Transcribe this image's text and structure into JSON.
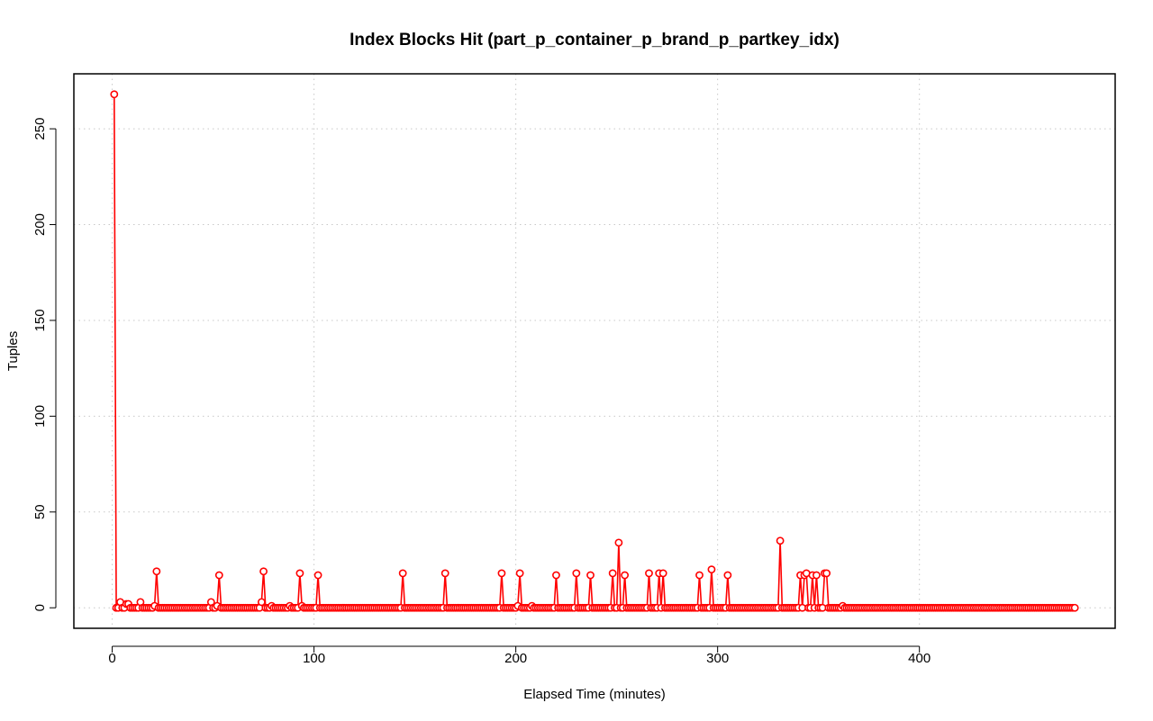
{
  "chart_data": {
    "type": "line",
    "title": "Index Blocks Hit (part_p_container_p_brand_p_partkey_idx)",
    "xlabel": "Elapsed Time (minutes)",
    "ylabel": "Tuples",
    "xlim": [
      -19,
      497
    ],
    "ylim": [
      -10.7,
      278.7
    ],
    "x_ticks": [
      0,
      100,
      200,
      300,
      400
    ],
    "y_ticks": [
      0,
      50,
      100,
      150,
      200,
      250
    ],
    "grid": true,
    "markers": "open-circle",
    "colors": {
      "series": "#ff0000",
      "grid": "#c8c8c8",
      "axis": "#000000"
    },
    "baseline": {
      "x_start": 1,
      "x_end": 477,
      "step": 1,
      "value": 0
    },
    "points": [
      [
        1,
        268
      ],
      [
        2,
        0
      ],
      [
        3,
        0
      ],
      [
        4,
        3
      ],
      [
        5,
        0
      ],
      [
        7,
        2
      ],
      [
        8,
        2
      ],
      [
        9,
        0
      ],
      [
        14,
        3
      ],
      [
        15,
        0
      ],
      [
        21,
        1
      ],
      [
        22,
        19
      ],
      [
        23,
        0
      ],
      [
        49,
        3
      ],
      [
        50,
        0
      ],
      [
        52,
        1
      ],
      [
        53,
        17
      ],
      [
        54,
        0
      ],
      [
        74,
        3
      ],
      [
        75,
        19
      ],
      [
        76,
        0
      ],
      [
        79,
        1
      ],
      [
        80,
        0
      ],
      [
        88,
        1
      ],
      [
        89,
        0
      ],
      [
        93,
        18
      ],
      [
        94,
        1
      ],
      [
        95,
        0
      ],
      [
        102,
        17
      ],
      [
        103,
        0
      ],
      [
        144,
        18
      ],
      [
        145,
        0
      ],
      [
        165,
        18
      ],
      [
        166,
        0
      ],
      [
        193,
        18
      ],
      [
        194,
        0
      ],
      [
        201,
        1
      ],
      [
        202,
        18
      ],
      [
        203,
        0
      ],
      [
        208,
        1
      ],
      [
        209,
        0
      ],
      [
        220,
        17
      ],
      [
        221,
        0
      ],
      [
        230,
        18
      ],
      [
        231,
        0
      ],
      [
        237,
        17
      ],
      [
        238,
        0
      ],
      [
        248,
        18
      ],
      [
        249,
        0
      ],
      [
        251,
        34
      ],
      [
        252,
        0
      ],
      [
        254,
        17
      ],
      [
        255,
        0
      ],
      [
        266,
        18
      ],
      [
        267,
        0
      ],
      [
        271,
        18
      ],
      [
        272,
        0
      ],
      [
        273,
        18
      ],
      [
        274,
        0
      ],
      [
        291,
        17
      ],
      [
        292,
        0
      ],
      [
        297,
        20
      ],
      [
        298,
        0
      ],
      [
        305,
        17
      ],
      [
        306,
        0
      ],
      [
        331,
        35
      ],
      [
        332,
        0
      ],
      [
        341,
        17
      ],
      [
        342,
        0
      ],
      [
        343,
        17
      ],
      [
        344,
        18
      ],
      [
        345,
        0
      ],
      [
        347,
        17
      ],
      [
        348,
        0
      ],
      [
        349,
        17
      ],
      [
        350,
        0
      ],
      [
        353,
        18
      ],
      [
        354,
        18
      ],
      [
        355,
        0
      ],
      [
        362,
        1
      ],
      [
        363,
        0
      ]
    ]
  }
}
